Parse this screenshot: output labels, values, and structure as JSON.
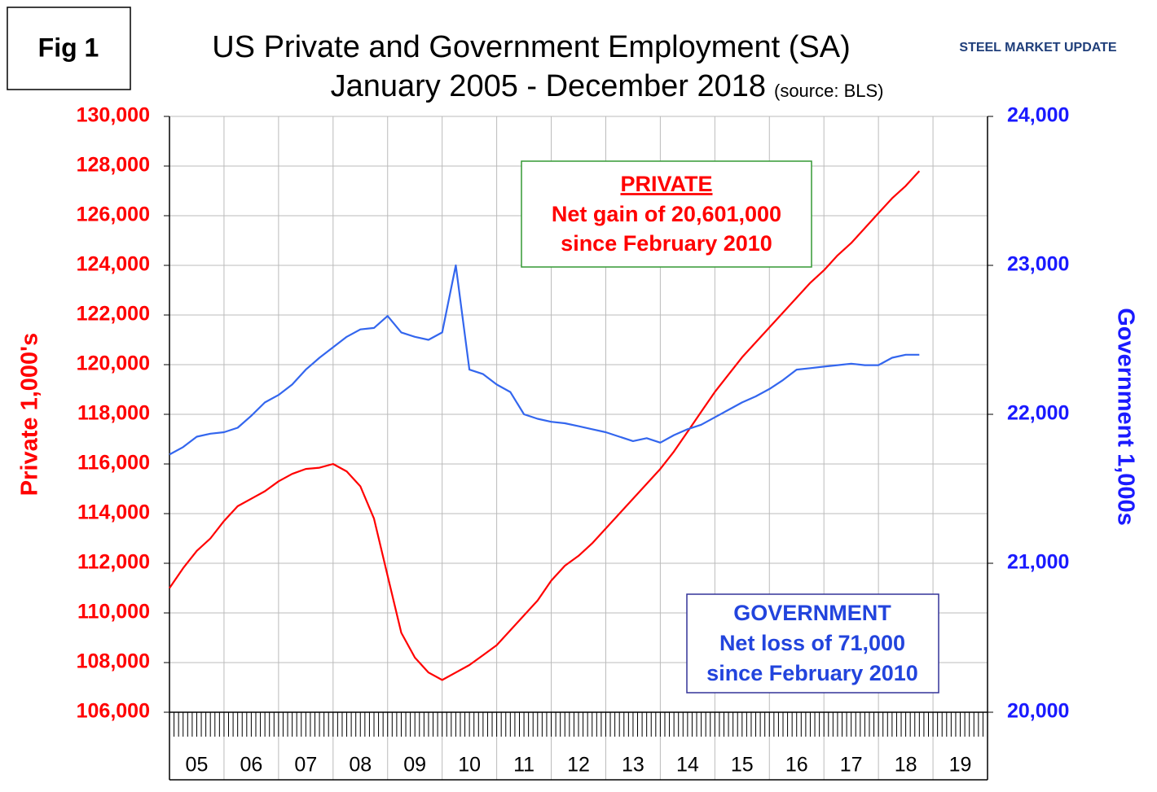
{
  "chart_data": {
    "type": "line",
    "figure_label": "Fig 1",
    "title": "US Private and Government Employment (SA)",
    "subtitle": "January 2005 - December 2018",
    "source": "(source: BLS)",
    "logo": "STEEL MARKET UPDATE",
    "ylabel": "Private 1,000's",
    "y2label": "Government 1,000s",
    "xlim": [
      2005,
      2020
    ],
    "xticks": [
      {
        "value": 2005.5,
        "label": "05"
      },
      {
        "value": 2006.5,
        "label": "06"
      },
      {
        "value": 2007.5,
        "label": "07"
      },
      {
        "value": 2008.5,
        "label": "08"
      },
      {
        "value": 2009.5,
        "label": "09"
      },
      {
        "value": 2010.5,
        "label": "10"
      },
      {
        "value": 2011.5,
        "label": "11"
      },
      {
        "value": 2012.5,
        "label": "12"
      },
      {
        "value": 2013.5,
        "label": "13"
      },
      {
        "value": 2014.5,
        "label": "14"
      },
      {
        "value": 2015.5,
        "label": "15"
      },
      {
        "value": 2016.5,
        "label": "16"
      },
      {
        "value": 2017.5,
        "label": "17"
      },
      {
        "value": 2018.5,
        "label": "18"
      },
      {
        "value": 2019.5,
        "label": "19"
      }
    ],
    "ylim": [
      106000,
      130000
    ],
    "yticks": [
      {
        "value": 106000,
        "label": "106,000"
      },
      {
        "value": 108000,
        "label": "108,000"
      },
      {
        "value": 110000,
        "label": "110,000"
      },
      {
        "value": 112000,
        "label": "112,000"
      },
      {
        "value": 114000,
        "label": "114,000"
      },
      {
        "value": 116000,
        "label": "116,000"
      },
      {
        "value": 118000,
        "label": "118,000"
      },
      {
        "value": 120000,
        "label": "120,000"
      },
      {
        "value": 122000,
        "label": "122,000"
      },
      {
        "value": 124000,
        "label": "124,000"
      },
      {
        "value": 126000,
        "label": "126,000"
      },
      {
        "value": 128000,
        "label": "128,000"
      },
      {
        "value": 130000,
        "label": "130,000"
      }
    ],
    "y2lim": [
      20000,
      24000
    ],
    "y2ticks": [
      {
        "value": 20000,
        "label": "20,000"
      },
      {
        "value": 21000,
        "label": "21,000"
      },
      {
        "value": 22000,
        "label": "22,000"
      },
      {
        "value": 23000,
        "label": "23,000"
      },
      {
        "value": 24000,
        "label": "24,000"
      }
    ],
    "grid": true,
    "x": [
      2005,
      2005.25,
      2005.5,
      2005.75,
      2006,
      2006.25,
      2006.5,
      2006.75,
      2007,
      2007.25,
      2007.5,
      2007.75,
      2008,
      2008.25,
      2008.5,
      2008.75,
      2009,
      2009.25,
      2009.5,
      2009.75,
      2010,
      2010.25,
      2010.5,
      2010.75,
      2011,
      2011.25,
      2011.5,
      2011.75,
      2012,
      2012.25,
      2012.5,
      2012.75,
      2013,
      2013.25,
      2013.5,
      2013.75,
      2014,
      2014.25,
      2014.5,
      2014.75,
      2015,
      2015.25,
      2015.5,
      2015.75,
      2016,
      2016.25,
      2016.5,
      2016.75,
      2017,
      2017.25,
      2017.5,
      2017.75,
      2018,
      2018.25,
      2018.5,
      2018.75
    ],
    "series": [
      {
        "name": "PRIVATE",
        "color": "#ff0000",
        "values": [
          111000,
          111800,
          112500,
          113000,
          113700,
          114300,
          114600,
          114900,
          115300,
          115600,
          115800,
          115850,
          116000,
          115700,
          115100,
          113800,
          111500,
          109200,
          108200,
          107600,
          107300,
          107600,
          107900,
          108300,
          108700,
          109300,
          109900,
          110500,
          111300,
          111900,
          112300,
          112800,
          113400,
          114000,
          114600,
          115200,
          115800,
          116500,
          117300,
          118100,
          118900,
          119600,
          120300,
          120900,
          121500,
          122100,
          122700,
          123300,
          123800,
          124400,
          124900,
          125500,
          126100,
          126700,
          127200,
          127800
        ]
      },
      {
        "name": "GOVERNMENT",
        "color": "#3366ee",
        "axis": "y2",
        "values": [
          21730,
          21780,
          21850,
          21870,
          21880,
          21910,
          21990,
          22080,
          22130,
          22200,
          22300,
          22380,
          22450,
          22520,
          22570,
          22580,
          22660,
          22550,
          22520,
          22500,
          22550,
          23000,
          22300,
          22270,
          22200,
          22150,
          22000,
          21970,
          21950,
          21940,
          21920,
          21900,
          21880,
          21850,
          21820,
          21840,
          21810,
          21860,
          21900,
          21930,
          21980,
          22030,
          22080,
          22120,
          22170,
          22230,
          22300,
          22310,
          22320,
          22330,
          22340,
          22330,
          22330,
          22380,
          22400,
          22400
        ]
      }
    ],
    "annotations": [
      {
        "lines": [
          "PRIVATE",
          "Net gain of 20,601,000",
          "since February 2010"
        ]
      },
      {
        "lines": [
          "GOVERNMENT",
          "Net loss of 71,000",
          "since February 2010"
        ]
      }
    ]
  }
}
